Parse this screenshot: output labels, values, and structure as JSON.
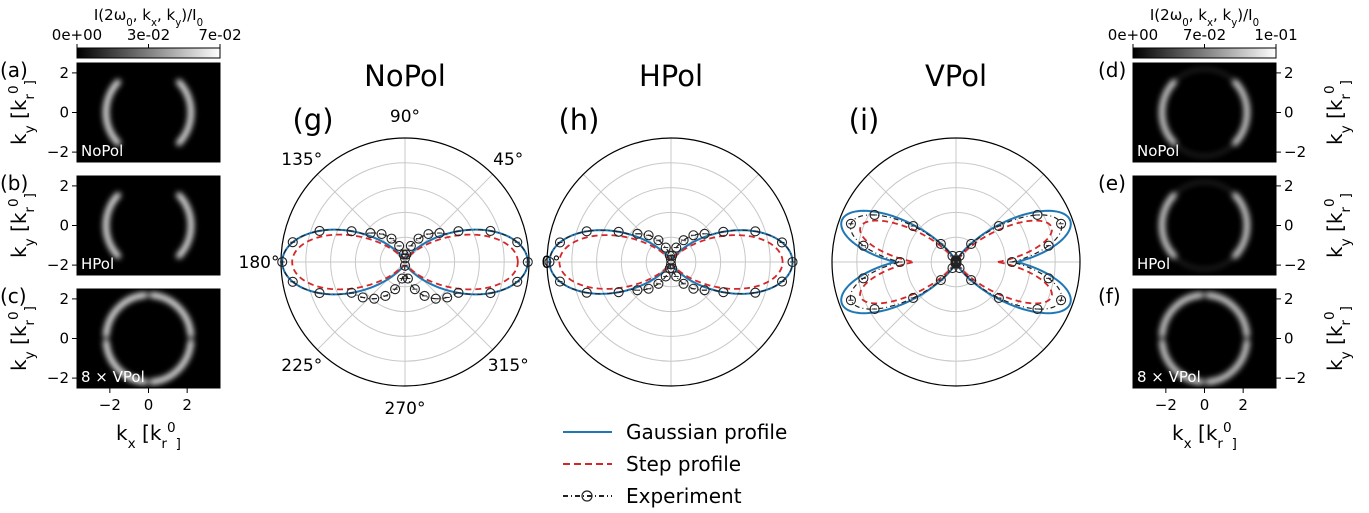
{
  "left_panels": {
    "colorbar_label_parts": [
      "I(2ω",
      "0",
      ", k",
      "x",
      ", k",
      "y",
      ")/I",
      "0"
    ],
    "colorbar_ticks": [
      "0e+00",
      "3e-02",
      "7e-02"
    ],
    "ylabel_parts": [
      "k",
      "y",
      " [k",
      "r",
      "0",
      "]"
    ],
    "xlabel_parts": [
      "k",
      "x",
      " [k",
      "r",
      "0",
      "]"
    ],
    "panels": [
      {
        "letter": "(a)",
        "tag": "NoPol",
        "mode": "nopol"
      },
      {
        "letter": "(b)",
        "tag": "HPol",
        "mode": "hpol"
      },
      {
        "letter": "(c)",
        "tag": "8 × VPol",
        "mode": "vpol"
      }
    ],
    "y_ticks": [
      "2",
      "0",
      "−2"
    ],
    "x_ticks": [
      "−2",
      "0",
      "2"
    ]
  },
  "right_panels": {
    "colorbar_label_parts": [
      "I(2ω",
      "0",
      ", k",
      "x",
      ", k",
      "y",
      ")/I",
      "0"
    ],
    "colorbar_ticks": [
      "0e+00",
      "7e-02",
      "1e-01"
    ],
    "ylabel_parts": [
      "k",
      "y",
      " [k",
      "r",
      "0",
      "]"
    ],
    "xlabel_parts": [
      "k",
      "x",
      " [k",
      "r",
      "0",
      "]"
    ],
    "panels": [
      {
        "letter": "(d)",
        "tag": "NoPol",
        "mode": "nopol"
      },
      {
        "letter": "(e)",
        "tag": "HPol",
        "mode": "hpol"
      },
      {
        "letter": "(f)",
        "tag": "8 × VPol",
        "mode": "vpol"
      }
    ],
    "y_ticks": [
      "2",
      "0",
      "−2"
    ],
    "x_ticks": [
      "−2",
      "0",
      "2"
    ]
  },
  "polar": [
    {
      "title": "NoPol",
      "letter": "(g)",
      "mode": "nopol",
      "angle_labels": {
        "0": "0°",
        "45": "45°",
        "90": "90°",
        "135": "135°",
        "180": "180°",
        "225": "225°",
        "270": "270°",
        "315": "315°"
      }
    },
    {
      "title": "HPol",
      "letter": "(h)",
      "mode": "hpol",
      "angle_labels": {}
    },
    {
      "title": "VPol",
      "letter": "(i)",
      "mode": "vpol",
      "angle_labels": {}
    }
  ],
  "legend": [
    {
      "label": "Gaussian profile",
      "color": "#1f77b4",
      "style": "solid"
    },
    {
      "label": "Step profile",
      "color": "#d62728",
      "style": "dashed"
    },
    {
      "label": "Experiment",
      "color": "#222222",
      "style": "dashdot-circle"
    }
  ],
  "chart_data": {
    "type": "polar",
    "radial_range": [
      0,
      1
    ],
    "grid": true,
    "series": [
      {
        "panel": "NoPol",
        "name": "Gaussian profile",
        "shape": "horizontal two-lobe",
        "lobe_half_width_deg": 30
      },
      {
        "panel": "NoPol",
        "name": "Step profile",
        "shape": "horizontal two-lobe",
        "lobe_half_width_deg": 28
      },
      {
        "panel": "NoPol",
        "name": "Experiment",
        "shape": "horizontal two-lobe with asymmetric lower lobes",
        "points": 36
      },
      {
        "panel": "HPol",
        "name": "Gaussian profile",
        "shape": "horizontal two-lobe",
        "lobe_half_width_deg": 25
      },
      {
        "panel": "HPol",
        "name": "Step profile",
        "shape": "horizontal two-lobe",
        "lobe_half_width_deg": 22
      },
      {
        "panel": "HPol",
        "name": "Experiment",
        "shape": "horizontal two-lobe",
        "points": 36
      },
      {
        "panel": "VPol",
        "name": "Gaussian profile",
        "shape": "four-lobe at ±20°, ±160°"
      },
      {
        "panel": "VPol",
        "name": "Step profile",
        "shape": "four-lobe at ±20°, ±160°"
      },
      {
        "panel": "VPol",
        "name": "Experiment",
        "shape": "four-lobe at ±20°, ±160°",
        "points": 36
      }
    ]
  }
}
